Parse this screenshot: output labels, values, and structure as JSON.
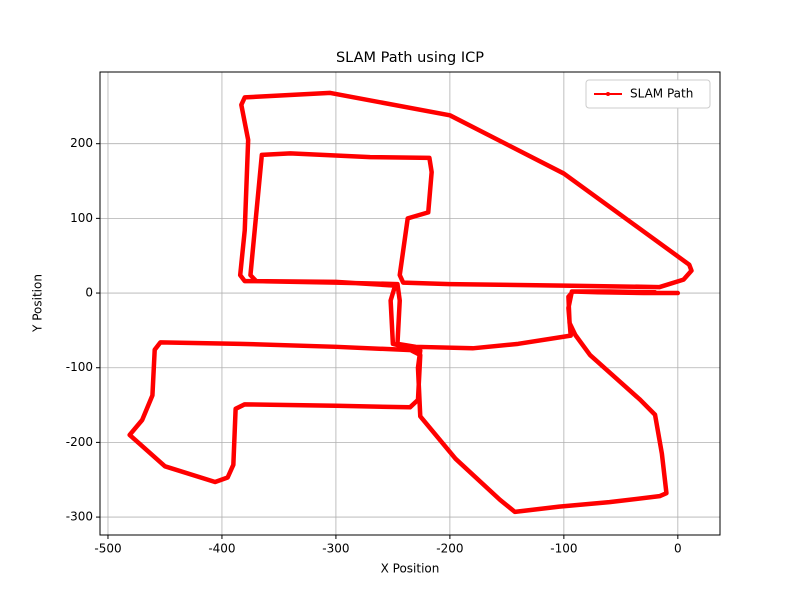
{
  "chart_data": {
    "type": "line",
    "title": "SLAM Path using ICP",
    "x_label": "X Position",
    "y_label": "Y Position",
    "x": [
      0,
      -30,
      -70,
      -92,
      -96,
      -95,
      -90,
      -77,
      -33,
      -20,
      -14,
      -10,
      -16,
      -60,
      -104,
      -143,
      -156,
      -195,
      -226,
      -228,
      -226,
      -300,
      -384,
      -454,
      -459,
      -461,
      -470,
      -481,
      -450,
      -406,
      -395,
      -390,
      -388,
      -380,
      -300,
      -235,
      -228,
      -226,
      -240,
      -250,
      -252,
      -248,
      -300,
      -380,
      -384,
      -380,
      -377,
      -383,
      -380,
      -305,
      -200,
      -100,
      10,
      12,
      5,
      -16,
      -100,
      -200,
      -241,
      -244,
      -237,
      -219,
      -216,
      -218,
      -270,
      -340,
      -365,
      -375,
      -370,
      -300,
      -246,
      -244,
      -246,
      -230,
      -180,
      -140,
      -94,
      -96,
      -93,
      -60,
      -20
    ],
    "series": [
      {
        "name": "SLAM Path",
        "color": "#ff0000",
        "values": [
          0,
          0,
          1,
          2,
          -5,
          -40,
          -56,
          -83,
          -143,
          -163,
          -215,
          -268,
          -272,
          -280,
          -286,
          -293,
          -277,
          -222,
          -165,
          -100,
          -77,
          -72,
          -68,
          -66,
          -76,
          -137,
          -170,
          -190,
          -232,
          -253,
          -247,
          -230,
          -155,
          -149,
          -151,
          -153,
          -143,
          -83,
          -72,
          -68,
          -10,
          10,
          15,
          16,
          24,
          84,
          205,
          252,
          262,
          268,
          238,
          160,
          38,
          30,
          18,
          8,
          10,
          12,
          14,
          24,
          100,
          108,
          162,
          181,
          182,
          187,
          185,
          24,
          16,
          14,
          12,
          -10,
          -68,
          -72,
          -74,
          -68,
          -57,
          -20,
          2,
          2,
          1
        ]
      }
    ],
    "xlim": [
      -507,
      37
    ],
    "ylim": [
      -324,
      296
    ],
    "xticks": [
      -500,
      -400,
      -300,
      -200,
      -100,
      0
    ],
    "yticks": [
      -300,
      -200,
      -100,
      0,
      100,
      200
    ],
    "grid": true,
    "legend": "upper right"
  }
}
